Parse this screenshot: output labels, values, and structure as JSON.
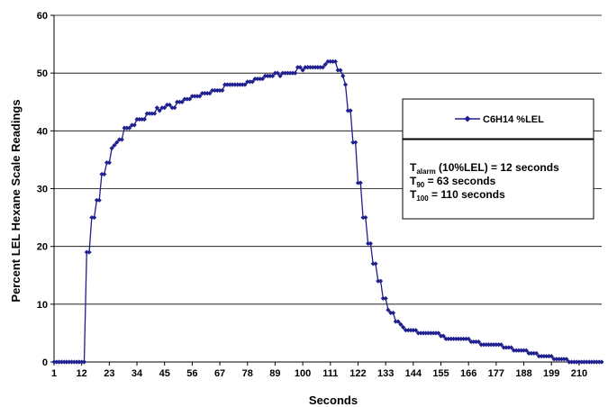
{
  "chart_data": {
    "type": "line",
    "xlabel": "Seconds",
    "ylabel": "Percent LEL Hexane Scale Readings",
    "ylim": [
      0,
      60
    ],
    "y_ticks": [
      "0",
      "10",
      "20",
      "30",
      "40",
      "50",
      "60"
    ],
    "xlim": [
      1,
      219
    ],
    "x_tick_labels": [
      "1",
      "12",
      "23",
      "34",
      "45",
      "56",
      "67",
      "78",
      "89",
      "100",
      "111",
      "122",
      "133",
      "144",
      "155",
      "166",
      "177",
      "188",
      "199",
      "210"
    ],
    "grid": "horizontal",
    "legend_position": "right",
    "series": [
      {
        "name": "C6H14 %LEL",
        "color": "#1f1f8f",
        "marker": "diamond",
        "x": [
          1,
          2,
          3,
          4,
          5,
          6,
          7,
          8,
          9,
          10,
          11,
          12,
          13,
          14,
          15,
          16,
          17,
          18,
          19,
          20,
          21,
          22,
          23,
          24,
          25,
          26,
          27,
          28,
          29,
          30,
          31,
          32,
          33,
          34,
          35,
          36,
          37,
          38,
          39,
          40,
          41,
          42,
          43,
          44,
          45,
          46,
          47,
          48,
          49,
          50,
          51,
          52,
          53,
          54,
          55,
          56,
          57,
          58,
          59,
          60,
          61,
          62,
          63,
          64,
          65,
          66,
          67,
          68,
          69,
          70,
          71,
          72,
          73,
          74,
          75,
          76,
          77,
          78,
          79,
          80,
          81,
          82,
          83,
          84,
          85,
          86,
          87,
          88,
          89,
          90,
          91,
          92,
          93,
          94,
          95,
          96,
          97,
          98,
          99,
          100,
          101,
          102,
          103,
          104,
          105,
          106,
          107,
          108,
          109,
          110,
          111,
          112,
          113,
          114,
          115,
          116,
          117,
          118,
          119,
          120,
          121,
          122,
          123,
          124,
          125,
          126,
          127,
          128,
          129,
          130,
          131,
          132,
          133,
          134,
          135,
          136,
          137,
          138,
          139,
          140,
          141,
          142,
          143,
          144,
          145,
          146,
          147,
          148,
          149,
          150,
          151,
          152,
          153,
          154,
          155,
          156,
          157,
          158,
          159,
          160,
          161,
          162,
          163,
          164,
          165,
          166,
          167,
          168,
          169,
          170,
          171,
          172,
          173,
          174,
          175,
          176,
          177,
          178,
          179,
          180,
          181,
          182,
          183,
          184,
          185,
          186,
          187,
          188,
          189,
          190,
          191,
          192,
          193,
          194,
          195,
          196,
          197,
          198,
          199,
          200,
          201,
          202,
          203,
          204,
          205,
          206,
          207,
          208,
          209,
          210,
          211,
          212,
          213,
          214,
          215,
          216,
          217,
          218,
          219
        ],
        "y": [
          0,
          0,
          0,
          0,
          0,
          0,
          0,
          0,
          0,
          0,
          0,
          0,
          0,
          19,
          19,
          25,
          25,
          28,
          28,
          32.5,
          32.5,
          34.5,
          34.5,
          37,
          37.5,
          38,
          38.5,
          38.5,
          40.5,
          40.5,
          40.5,
          41,
          41,
          42,
          42,
          42,
          42,
          43,
          43,
          43,
          43,
          44,
          43.5,
          44,
          44,
          44.5,
          44.5,
          44,
          44,
          45,
          45,
          45,
          45.5,
          45.5,
          45.5,
          46,
          46,
          46,
          46,
          46.5,
          46.5,
          46.5,
          46.5,
          47,
          47,
          47,
          47,
          47,
          48,
          48,
          48,
          48,
          48,
          48,
          48,
          48,
          48,
          48.5,
          48.5,
          48.5,
          49,
          49,
          49,
          49,
          49.5,
          49.5,
          49.5,
          49.5,
          50,
          50,
          49.5,
          50,
          50,
          50,
          50,
          50,
          50,
          51,
          51,
          50.5,
          51,
          51,
          51,
          51,
          51,
          51,
          51,
          51,
          51.5,
          52,
          52,
          52,
          52,
          50.5,
          50.5,
          49.5,
          48,
          43.5,
          43.5,
          38,
          38,
          31,
          31,
          25,
          25,
          20.5,
          20.5,
          17,
          17,
          14,
          14,
          11,
          11,
          9,
          8.5,
          8.5,
          7,
          7,
          6.5,
          6,
          5.5,
          5.5,
          5.5,
          5.5,
          5.5,
          5,
          5,
          5,
          5,
          5,
          5,
          5,
          5,
          5,
          4.5,
          4.5,
          4,
          4,
          4,
          4,
          4,
          4,
          4,
          4,
          4,
          4,
          3.5,
          3.5,
          3.5,
          3.5,
          3,
          3,
          3,
          3,
          3,
          3,
          3,
          3,
          3,
          2.5,
          2.5,
          2.5,
          2.5,
          2,
          2,
          2,
          2,
          2,
          2,
          1.5,
          1.5,
          1.5,
          1.5,
          1,
          1,
          1,
          1,
          1,
          1,
          0.5,
          0.5,
          0.5,
          0.5,
          0.5,
          0.5,
          0,
          0,
          0,
          0,
          0,
          0,
          0,
          0,
          0,
          0,
          0,
          0,
          0,
          0
        ]
      }
    ],
    "annotation": {
      "lines": [
        {
          "main": "T",
          "sub": "alarm",
          "rest": " (10%LEL) = 12 seconds"
        },
        {
          "main": "T",
          "sub": "90",
          "rest": " = 63 seconds"
        },
        {
          "main": "T",
          "sub": "100",
          "rest": " = 110 seconds"
        }
      ]
    }
  }
}
